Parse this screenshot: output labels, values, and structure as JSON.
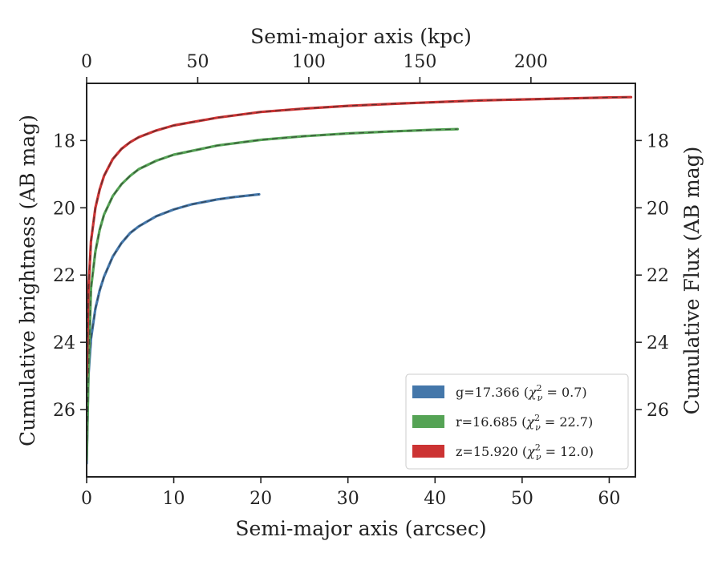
{
  "chart_data": {
    "type": "line",
    "xlabel": "Semi-major axis (arcsec)",
    "ylabel": "Cumulative brightness (AB mag)",
    "x2label": "Semi-major axis (kpc)",
    "y2label": "Cumulative Flux (AB mag)",
    "xlim": [
      0,
      63
    ],
    "ylim": [
      28,
      16.3
    ],
    "y_inverted": true,
    "x2lim": [
      0,
      247
    ],
    "xticks": [
      0,
      10,
      20,
      30,
      40,
      50,
      60
    ],
    "yticks": [
      18,
      20,
      22,
      24,
      26
    ],
    "x2ticks": [
      0,
      50,
      100,
      150,
      200
    ],
    "model_line_style": "dashed",
    "legend_location": "lower-right",
    "series": [
      {
        "name": "g",
        "legend": {
          "band": "g",
          "total": "=17.366 (",
          "chi_sym": "χ",
          "sub": "ν",
          "sup": "2",
          "chi_val": " = 0.7)"
        },
        "color": "#4477aa",
        "x": [
          0,
          0.2,
          0.5,
          1,
          1.5,
          2,
          3,
          4,
          5,
          6,
          8,
          10,
          12,
          15,
          17,
          19.8
        ],
        "values": [
          27.6,
          25.0,
          23.9,
          23.0,
          22.45,
          22.05,
          21.45,
          21.05,
          20.75,
          20.55,
          20.25,
          20.05,
          19.9,
          19.75,
          19.68,
          19.6
        ]
      },
      {
        "name": "r",
        "legend": {
          "band": "r",
          "total": "=16.685 (",
          "chi_sym": "χ",
          "sub": "ν",
          "sup": "2",
          "chi_val": " = 22.7)"
        },
        "color": "#55a355",
        "x": [
          0,
          0.2,
          0.5,
          1,
          1.5,
          2,
          3,
          4,
          5,
          6,
          8,
          10,
          15,
          20,
          25,
          30,
          35,
          40,
          42.6
        ],
        "values": [
          27.5,
          25.0,
          22.4,
          21.3,
          20.65,
          20.2,
          19.65,
          19.3,
          19.05,
          18.85,
          18.6,
          18.42,
          18.15,
          17.98,
          17.87,
          17.79,
          17.73,
          17.68,
          17.66
        ]
      },
      {
        "name": "z",
        "legend": {
          "band": "z",
          "total": "=15.920 (",
          "chi_sym": "χ",
          "sub": "ν",
          "sup": "2",
          "chi_val": " = 12.0)"
        },
        "color": "#cc3333",
        "x": [
          0,
          0.2,
          0.5,
          1,
          1.5,
          2,
          3,
          4,
          5,
          6,
          8,
          10,
          15,
          20,
          25,
          30,
          35,
          40,
          45,
          50,
          55,
          60,
          62.5
        ],
        "values": [
          25.0,
          22.5,
          21.0,
          20.0,
          19.45,
          19.05,
          18.55,
          18.25,
          18.05,
          17.9,
          17.7,
          17.55,
          17.32,
          17.15,
          17.05,
          16.97,
          16.91,
          16.86,
          16.81,
          16.78,
          16.75,
          16.72,
          16.71
        ]
      }
    ]
  }
}
